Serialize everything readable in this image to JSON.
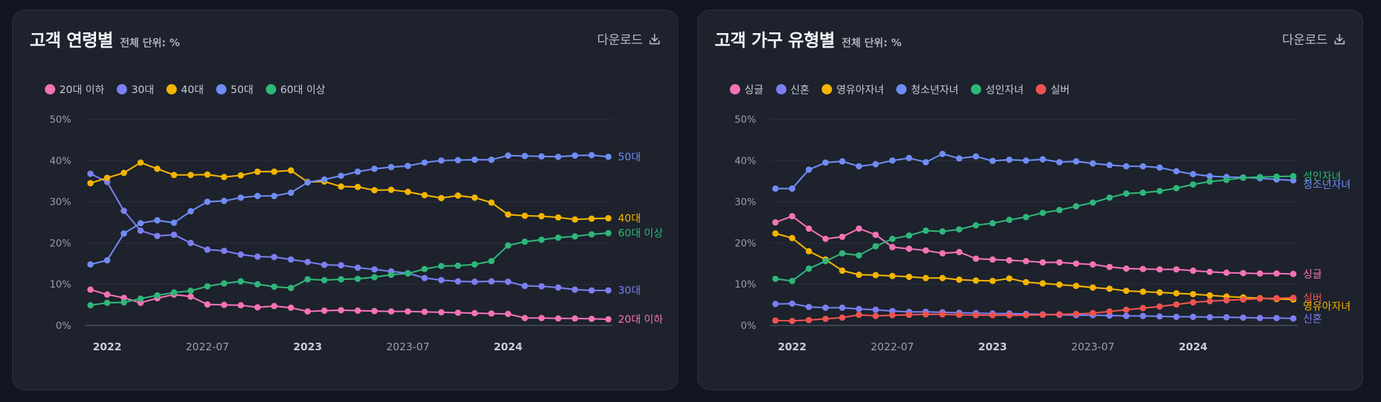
{
  "charts": [
    {
      "title": "고객 연령별",
      "unit": "전체 단위: %",
      "download_label": "다운로드",
      "chart_data": {
        "type": "line",
        "title": "고객 연령별",
        "subtitle": "전체 단위: %",
        "ylim": [
          0,
          50
        ],
        "y_ticks": [
          "0%",
          "10%",
          "20%",
          "30%",
          "40%",
          "50%"
        ],
        "x_ticks": [
          {
            "label": "2022",
            "index": 1,
            "bold": true
          },
          {
            "label": "2022-07",
            "index": 7,
            "bold": false
          },
          {
            "label": "2023",
            "index": 13,
            "bold": true
          },
          {
            "label": "2023-07",
            "index": 19,
            "bold": false
          },
          {
            "label": "2024",
            "index": 25,
            "bold": true
          }
        ],
        "grid": true,
        "legend": "top-left",
        "series": [
          {
            "name": "20대 이하",
            "end_label": "20대 이하",
            "color": "#f472b6",
            "values": [
              8.7,
              7.5,
              6.7,
              5.5,
              6.6,
              7.5,
              7.0,
              5.1,
              5.0,
              4.9,
              4.4,
              4.7,
              4.3,
              3.4,
              3.6,
              3.7,
              3.6,
              3.5,
              3.4,
              3.4,
              3.3,
              3.2,
              3.1,
              3.0,
              2.9,
              2.8,
              1.8,
              1.8,
              1.7,
              1.7,
              1.6,
              1.5
            ]
          },
          {
            "name": "30대",
            "end_label": "30대",
            "color": "#7b7ff0",
            "values": [
              36.8,
              34.8,
              27.8,
              23.0,
              21.7,
              22.0,
              20.0,
              18.4,
              18.1,
              17.2,
              16.7,
              16.6,
              16.0,
              15.4,
              14.7,
              14.6,
              14.0,
              13.6,
              13.1,
              12.7,
              11.5,
              11.0,
              10.7,
              10.6,
              10.7,
              10.6,
              9.6,
              9.5,
              9.2,
              8.7,
              8.5,
              8.5
            ]
          },
          {
            "name": "40대",
            "end_label": "40대",
            "color": "#f4b400",
            "values": [
              34.5,
              35.8,
              37.0,
              39.5,
              38.0,
              36.5,
              36.5,
              36.6,
              36.0,
              36.4,
              37.3,
              37.3,
              37.6,
              34.8,
              34.9,
              33.7,
              33.6,
              32.8,
              32.9,
              32.4,
              31.6,
              30.9,
              31.5,
              31.0,
              29.8,
              26.9,
              26.6,
              26.5,
              26.2,
              25.7,
              25.9,
              26.0
            ]
          },
          {
            "name": "50대",
            "end_label": "50대",
            "color": "#6f8cf5",
            "values": [
              14.8,
              15.8,
              22.3,
              24.8,
              25.5,
              24.9,
              27.7,
              30.0,
              30.2,
              31.0,
              31.4,
              31.4,
              32.2,
              34.7,
              35.4,
              36.3,
              37.3,
              38.0,
              38.4,
              38.7,
              39.5,
              40.0,
              40.1,
              40.2,
              40.2,
              41.2,
              41.1,
              41.0,
              40.9,
              41.2,
              41.3,
              40.9
            ]
          },
          {
            "name": "60대 이상",
            "end_label": "60대 이상",
            "color": "#2fb67a",
            "values": [
              4.9,
              5.5,
              5.6,
              6.5,
              7.3,
              8.0,
              8.4,
              9.5,
              10.2,
              10.7,
              10.0,
              9.4,
              9.1,
              11.2,
              11.0,
              11.2,
              11.3,
              11.7,
              12.3,
              12.6,
              13.7,
              14.4,
              14.5,
              14.8,
              15.6,
              19.4,
              20.3,
              20.8,
              21.3,
              21.6,
              22.1,
              22.4
            ]
          }
        ]
      }
    },
    {
      "title": "고객 가구 유형별",
      "unit": "전체 단위: %",
      "download_label": "다운로드",
      "chart_data": {
        "type": "line",
        "title": "고객 가구 유형별",
        "subtitle": "전체 단위: %",
        "ylim": [
          0,
          50
        ],
        "y_ticks": [
          "0%",
          "10%",
          "20%",
          "30%",
          "40%",
          "50%"
        ],
        "x_ticks": [
          {
            "label": "2022",
            "index": 1,
            "bold": true
          },
          {
            "label": "2022-07",
            "index": 7,
            "bold": false
          },
          {
            "label": "2023",
            "index": 13,
            "bold": true
          },
          {
            "label": "2023-07",
            "index": 19,
            "bold": false
          },
          {
            "label": "2024",
            "index": 25,
            "bold": true
          }
        ],
        "grid": true,
        "legend": "top-left",
        "series": [
          {
            "name": "싱글",
            "end_label": "싱글",
            "color": "#f472b6",
            "values": [
              25.0,
              26.5,
              23.5,
              21.0,
              21.5,
              23.5,
              22.0,
              19.0,
              18.6,
              18.2,
              17.5,
              17.8,
              16.2,
              16.0,
              15.8,
              15.6,
              15.3,
              15.3,
              15.0,
              14.8,
              14.2,
              13.8,
              13.7,
              13.6,
              13.6,
              13.3,
              13.0,
              12.8,
              12.7,
              12.6,
              12.6,
              12.5
            ]
          },
          {
            "name": "신혼",
            "end_label": "신혼",
            "color": "#7b7ff0",
            "values": [
              5.2,
              5.3,
              4.5,
              4.3,
              4.3,
              4.0,
              3.8,
              3.5,
              3.3,
              3.3,
              3.2,
              3.1,
              3.0,
              2.9,
              2.9,
              2.8,
              2.7,
              2.6,
              2.5,
              2.5,
              2.4,
              2.3,
              2.3,
              2.2,
              2.1,
              2.1,
              2.0,
              2.0,
              1.9,
              1.8,
              1.8,
              1.7
            ]
          },
          {
            "name": "영유아자녀",
            "end_label": "영유아자녀",
            "color": "#f4b400",
            "values": [
              22.3,
              21.2,
              18.0,
              16.0,
              13.3,
              12.3,
              12.2,
              12.0,
              11.8,
              11.5,
              11.5,
              11.1,
              10.9,
              10.8,
              11.4,
              10.5,
              10.2,
              9.9,
              9.6,
              9.2,
              8.9,
              8.4,
              8.2,
              8.0,
              7.8,
              7.6,
              7.3,
              7.0,
              6.8,
              6.6,
              6.4,
              6.3
            ]
          },
          {
            "name": "청소년자녀",
            "end_label": "청소년자녀",
            "color": "#6f8cf5",
            "values": [
              33.2,
              33.2,
              37.8,
              39.5,
              39.8,
              38.6,
              39.1,
              40.0,
              40.6,
              39.6,
              41.6,
              40.5,
              41.0,
              39.9,
              40.2,
              40.0,
              40.3,
              39.6,
              39.8,
              39.3,
              38.9,
              38.6,
              38.6,
              38.3,
              37.4,
              36.7,
              36.2,
              36.0,
              35.9,
              35.7,
              35.4,
              35.2
            ]
          },
          {
            "name": "성인자녀",
            "end_label": "성인자녀",
            "color": "#2fb67a",
            "values": [
              11.3,
              10.8,
              13.8,
              15.6,
              17.5,
              17.0,
              19.2,
              21.0,
              21.8,
              23.0,
              22.8,
              23.3,
              24.3,
              24.8,
              25.6,
              26.3,
              27.3,
              28.0,
              28.9,
              29.8,
              31.0,
              32.0,
              32.2,
              32.6,
              33.3,
              34.2,
              34.9,
              35.3,
              35.8,
              36.0,
              36.1,
              36.2
            ]
          },
          {
            "name": "실버",
            "end_label": "실버",
            "color": "#ef5350",
            "values": [
              1.2,
              1.1,
              1.3,
              1.6,
              1.9,
              2.6,
              2.3,
              2.5,
              2.6,
              2.7,
              2.7,
              2.6,
              2.5,
              2.5,
              2.5,
              2.5,
              2.6,
              2.7,
              2.8,
              3.0,
              3.4,
              3.8,
              4.2,
              4.6,
              5.1,
              5.6,
              5.9,
              6.1,
              6.3,
              6.5,
              6.6,
              6.7
            ]
          }
        ]
      }
    }
  ]
}
